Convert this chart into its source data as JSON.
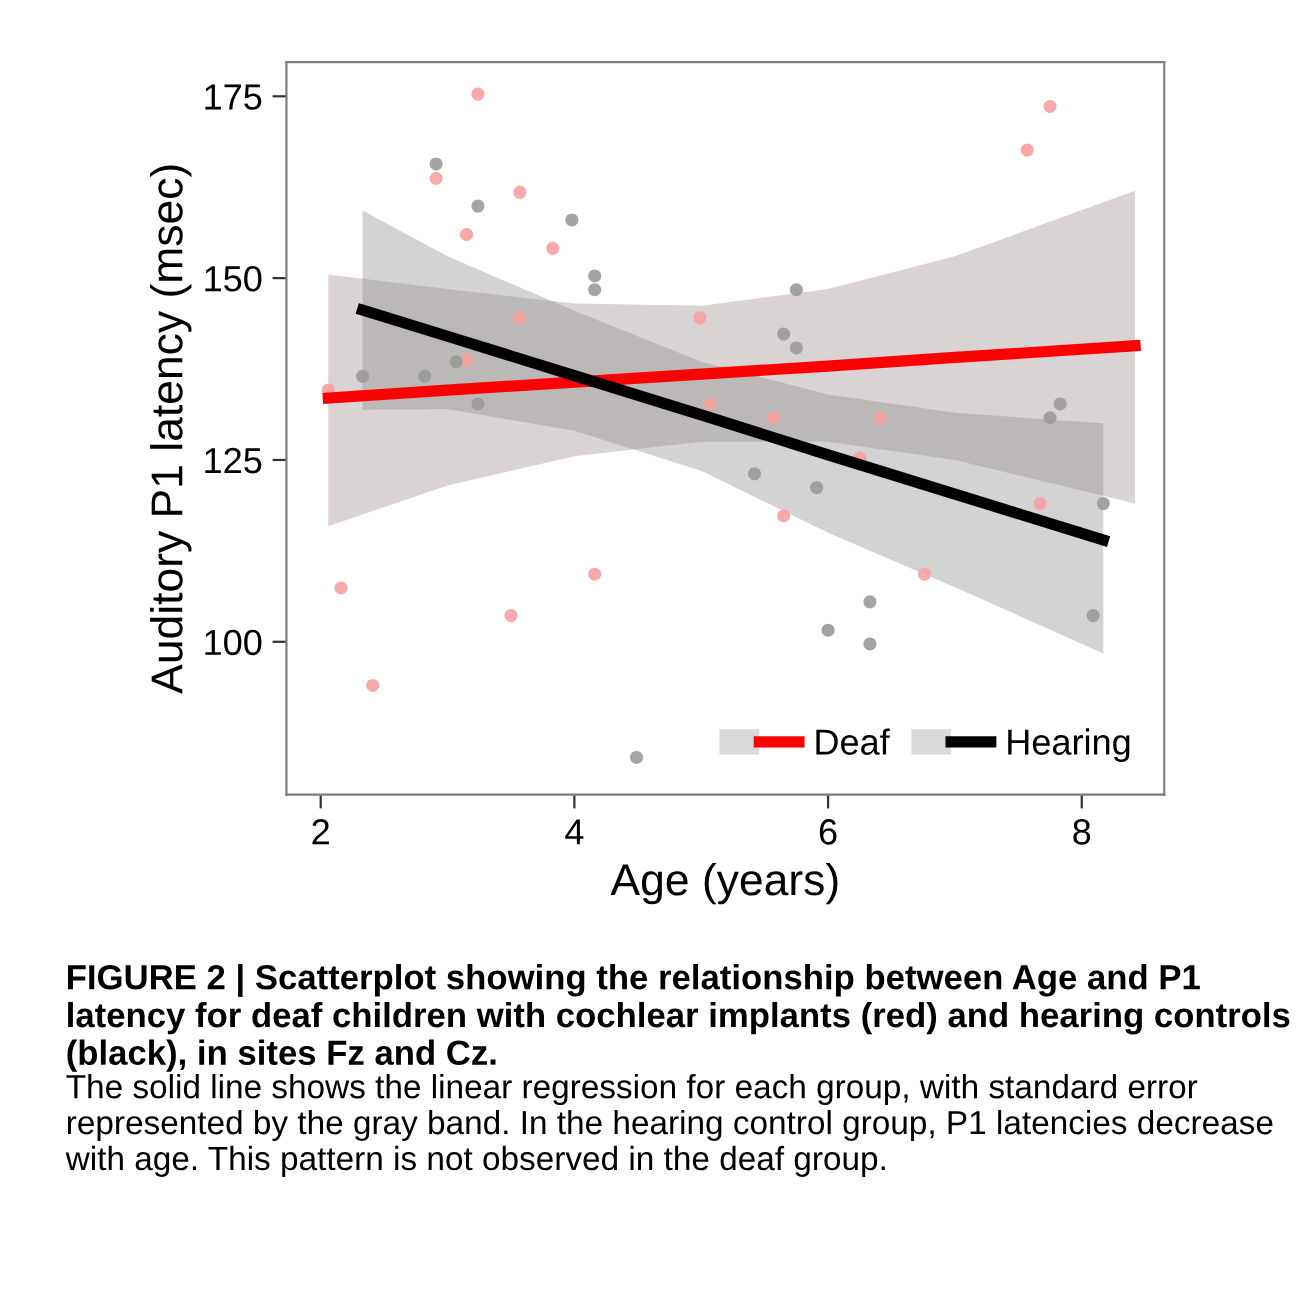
{
  "chart_data": {
    "type": "scatter",
    "xlabel": "Age (years)",
    "ylabel": "Auditory P1 latency (msec)",
    "xlim": [
      1.73,
      8.65
    ],
    "ylim": [
      79,
      179.7
    ],
    "xticks": [
      2,
      4,
      6,
      8
    ],
    "yticks": [
      100,
      125,
      150,
      175
    ],
    "grid": false,
    "legend": "bottom right",
    "marker": "circle",
    "series": [
      {
        "type": "scatter",
        "color": "#f8a0a0",
        "x": [
          2.06,
          2.91,
          3.24,
          3.15,
          3.57,
          3.83,
          3.57,
          3.15,
          4.99,
          5.07,
          7.75,
          7.57,
          5.57,
          6.41,
          2.16,
          2.41,
          3.5,
          4.16,
          5.65,
          6.25,
          6.76,
          7.67
        ],
        "values": [
          134.6,
          163.7,
          175.3,
          156.0,
          161.8,
          154.1,
          144.5,
          138.7,
          144.5,
          132.7,
          173.6,
          167.6,
          130.8,
          130.8,
          107.4,
          94.0,
          103.6,
          109.3,
          117.3,
          125.3,
          109.3,
          119.0
        ]
      },
      {
        "type": "scatter",
        "color": "#9a9a9a",
        "x": [
          2.91,
          3.24,
          3.98,
          4.16,
          4.16,
          2.33,
          2.39,
          2.82,
          3.07,
          3.24,
          5.75,
          5.65,
          5.75,
          7.83,
          7.75,
          4.49,
          5.42,
          5.91,
          6.33,
          6.0,
          6.33,
          8.09,
          8.17
        ],
        "values": [
          165.7,
          159.9,
          158.0,
          150.3,
          148.4,
          136.5,
          null,
          136.5,
          138.5,
          132.7,
          148.4,
          142.3,
          140.4,
          132.7,
          130.8,
          84.1,
          123.1,
          121.2,
          105.5,
          101.6,
          99.7,
          103.6,
          119.0
        ]
      },
      {
        "type": "line",
        "name": "Deaf",
        "color": "#ff0000",
        "marker": "none",
        "x": [
          2.06,
          3,
          4,
          5,
          6,
          7,
          8.42
        ],
        "values": [
          133.5,
          134.6,
          135.7,
          136.8,
          137.9,
          139.1,
          140.7
        ],
        "lower": [
          115.9,
          121.5,
          125.5,
          127.5,
          127.5,
          125,
          119
        ],
        "upper": [
          150.5,
          148.5,
          146.5,
          146.2,
          148.5,
          153,
          162
        ]
      },
      {
        "type": "line",
        "name": "Hearing",
        "color": "#000000",
        "marker": "none",
        "x": [
          2.33,
          3,
          4,
          5,
          6,
          7,
          8.17
        ],
        "values": [
          145.6,
          142.0,
          136.6,
          131.2,
          125.7,
          120.3,
          114.0
        ],
        "lower": [
          131.9,
          132,
          129,
          123.5,
          115,
          107.5,
          98.4
        ],
        "upper": [
          159.3,
          153,
          145.5,
          138.5,
          134,
          131.5,
          130
        ]
      }
    ],
    "annotations": [
      "FIGURE 2 | Scatterplot showing the relationship between Age and P1 latency for deaf children with cochlear implants (red) and hearing controls (black), in sites Fz and Cz.",
      "The solid line shows the linear regression for each group, with standard error represented by the gray band. In the hearing control group, P1 latencies decrease with age. This pattern is not observed in the deaf group."
    ]
  }
}
